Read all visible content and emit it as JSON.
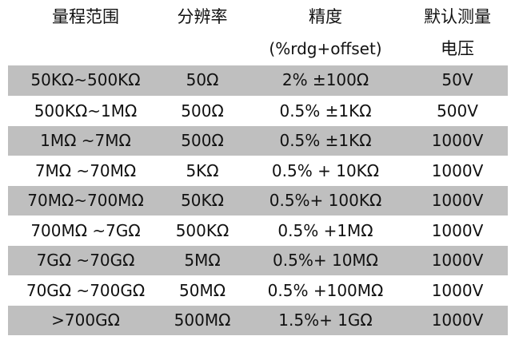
{
  "table": {
    "headers": [
      {
        "line1": "量程范围",
        "line2": ""
      },
      {
        "line1": "分辨率",
        "line2": ""
      },
      {
        "line1": "精度",
        "line2": "(%rdg+offset)"
      },
      {
        "line1": "默认测量",
        "line2": "电压"
      }
    ],
    "rows": [
      {
        "range": "50KΩ~500KΩ",
        "resolution": "50Ω",
        "accuracy": "2% ±100Ω",
        "voltage": "50V",
        "shaded": true
      },
      {
        "range": "500KΩ~1MΩ",
        "resolution": "500Ω",
        "accuracy": "0.5% ±1KΩ",
        "voltage": "500V",
        "shaded": false
      },
      {
        "range": "1MΩ ~7MΩ",
        "resolution": "500Ω",
        "accuracy": "0.5% ±1KΩ",
        "voltage": "1000V",
        "shaded": true
      },
      {
        "range": "7MΩ ~70MΩ",
        "resolution": "5KΩ",
        "accuracy": "0.5% + 10KΩ",
        "voltage": "1000V",
        "shaded": false
      },
      {
        "range": "70MΩ~700MΩ",
        "resolution": "50KΩ",
        "accuracy": "0.5%+ 100KΩ",
        "voltage": "1000V",
        "shaded": true
      },
      {
        "range": "700MΩ ~7GΩ",
        "resolution": "500KΩ",
        "accuracy": "0.5% +1MΩ",
        "voltage": "1000V",
        "shaded": false
      },
      {
        "range": "7GΩ ~70GΩ",
        "resolution": "5MΩ",
        "accuracy": "0.5%+ 10MΩ",
        "voltage": "1000V",
        "shaded": true
      },
      {
        "range": "70GΩ ~700GΩ",
        "resolution": "50MΩ",
        "accuracy": "0.5% +100MΩ",
        "voltage": "1000V",
        "shaded": false
      },
      {
        "range": ">700GΩ",
        "resolution": "500MΩ",
        "accuracy": "1.5%+ 1GΩ",
        "voltage": "1000V",
        "shaded": true
      }
    ],
    "colors": {
      "shaded_row": "#bfbfbf",
      "plain_row": "#ffffff",
      "text": "#111111"
    }
  }
}
